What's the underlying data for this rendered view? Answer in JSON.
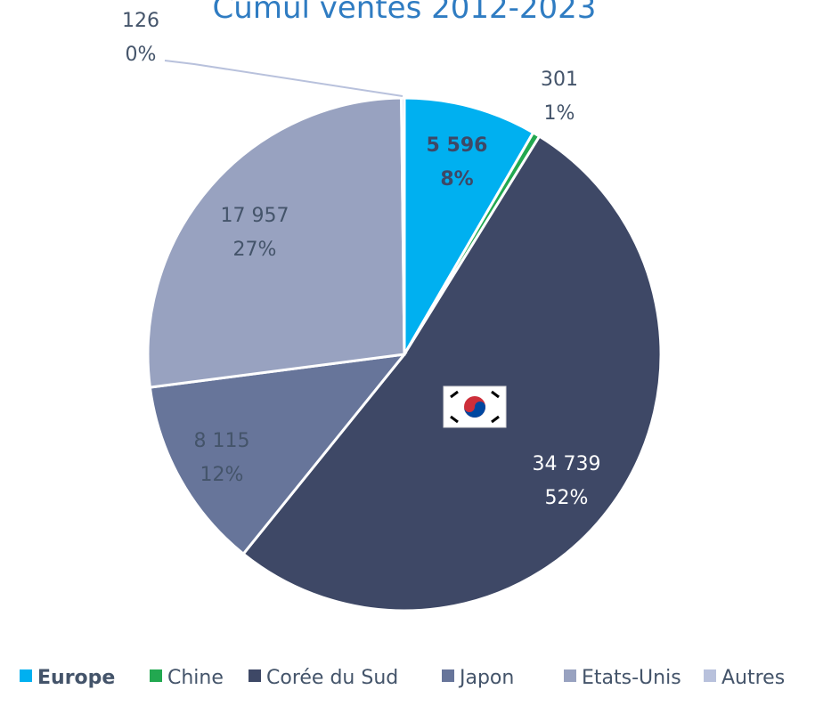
{
  "chart_data": {
    "type": "pie",
    "title": "Cumul ventes 2012-2023",
    "categories": [
      "Europe",
      "Chine",
      "Corée du Sud",
      "Japon",
      "Etats-Unis",
      "Autres"
    ],
    "values": [
      5596,
      301,
      34739,
      8115,
      17957,
      126
    ],
    "value_labels": [
      "5 596",
      "301",
      "34 739",
      "8 115",
      "17 957",
      "126"
    ],
    "percent_labels": [
      "8%",
      "1%",
      "52%",
      "12%",
      "27%",
      "0%"
    ],
    "colors": [
      "#00b0f0",
      "#22a850",
      "#3e4866",
      "#67759a",
      "#98a2c0",
      "#b8c1dc"
    ],
    "legend": "bottom"
  }
}
